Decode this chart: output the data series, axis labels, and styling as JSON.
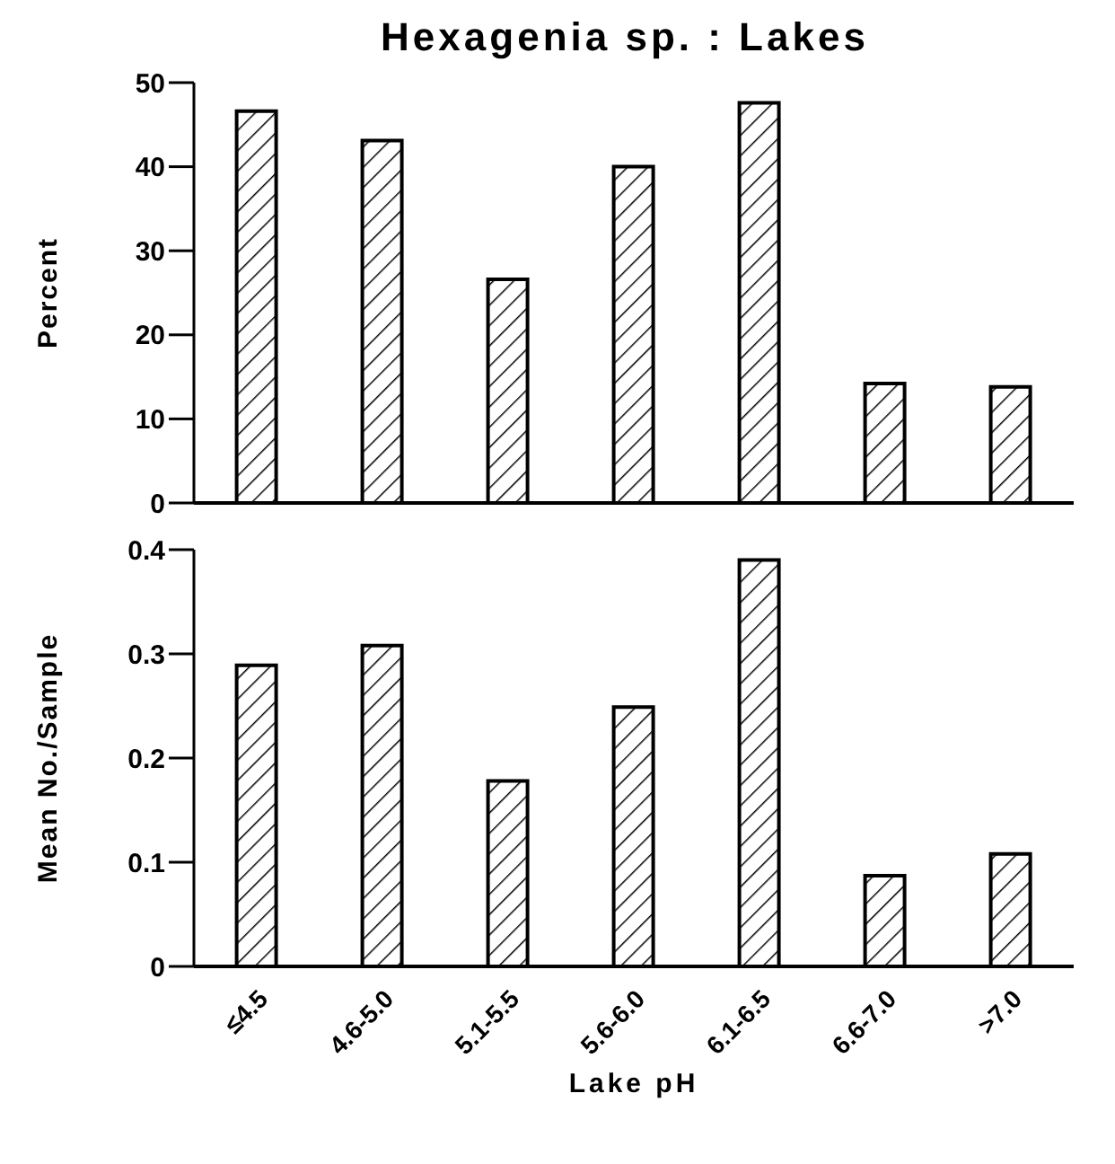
{
  "chart_data": [
    {
      "type": "bar",
      "title": "Hexagenia sp. : Lakes",
      "ylabel": "Percent",
      "categories": [
        null,
        null,
        null,
        null,
        null,
        null,
        null
      ],
      "values": [
        46.6,
        43.1,
        26.6,
        40,
        47.6,
        14.2,
        13.8
      ],
      "color": "#000000",
      "ylim": [
        0,
        50
      ],
      "yticks": [
        0,
        10,
        20,
        30,
        40,
        50
      ],
      "tick_labels": "y"
    },
    {
      "type": "bar",
      "xlabel": "Lake pH",
      "ylabel": "Mean No./Sample",
      "categories": [
        "≤4.5",
        "4.6-5.0",
        "5.1-5.5",
        "5.6-6.0",
        "6.1-6.5",
        "6.6-7.0",
        ">7.0"
      ],
      "values": [
        0.289,
        0.308,
        0.178,
        0.249,
        0.39,
        0.087,
        0.108
      ],
      "color": "#000000",
      "ylim": [
        0,
        0.4
      ],
      "yticks": [
        0,
        0.1,
        0.2,
        0.3,
        0.4
      ]
    }
  ]
}
